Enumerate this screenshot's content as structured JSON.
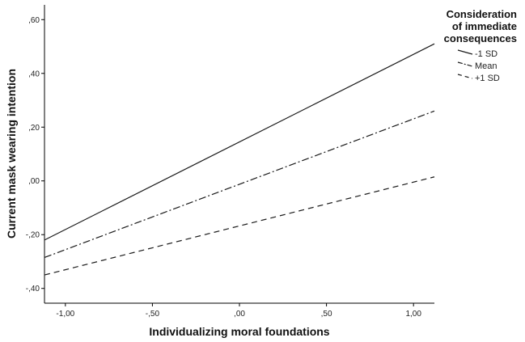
{
  "chart_data": {
    "type": "line",
    "xlabel": "Individualizing moral foundations",
    "ylabel": "Current mask wearing intention",
    "xlim": [
      -1.12,
      1.12
    ],
    "ylim": [
      -0.455,
      0.655
    ],
    "x_ticks": [
      -1.0,
      -0.5,
      0.0,
      0.5,
      1.0
    ],
    "x_tick_labels": [
      "-1,00",
      "-,50",
      ",00",
      ",50",
      "1,00"
    ],
    "y_ticks": [
      -0.4,
      -0.2,
      0.0,
      0.2,
      0.4,
      0.6
    ],
    "y_tick_labels": [
      "-,40",
      "-,20",
      ",00",
      ",20",
      ",40",
      ",60"
    ],
    "grid": false,
    "legend": {
      "title_lines": [
        "Consideration",
        "of immediate",
        "consequences"
      ],
      "placement": "top-right"
    },
    "series": [
      {
        "name": "-1 SD",
        "x": [
          -1.12,
          1.12
        ],
        "y": [
          -0.22,
          0.51
        ],
        "line_style": "solid"
      },
      {
        "name": "Mean",
        "x": [
          -1.12,
          1.12
        ],
        "y": [
          -0.285,
          0.26
        ],
        "line_style": "dash-dot"
      },
      {
        "name": "+1 SD",
        "x": [
          -1.12,
          1.12
        ],
        "y": [
          -0.35,
          0.015
        ],
        "line_style": "dashed"
      }
    ]
  }
}
